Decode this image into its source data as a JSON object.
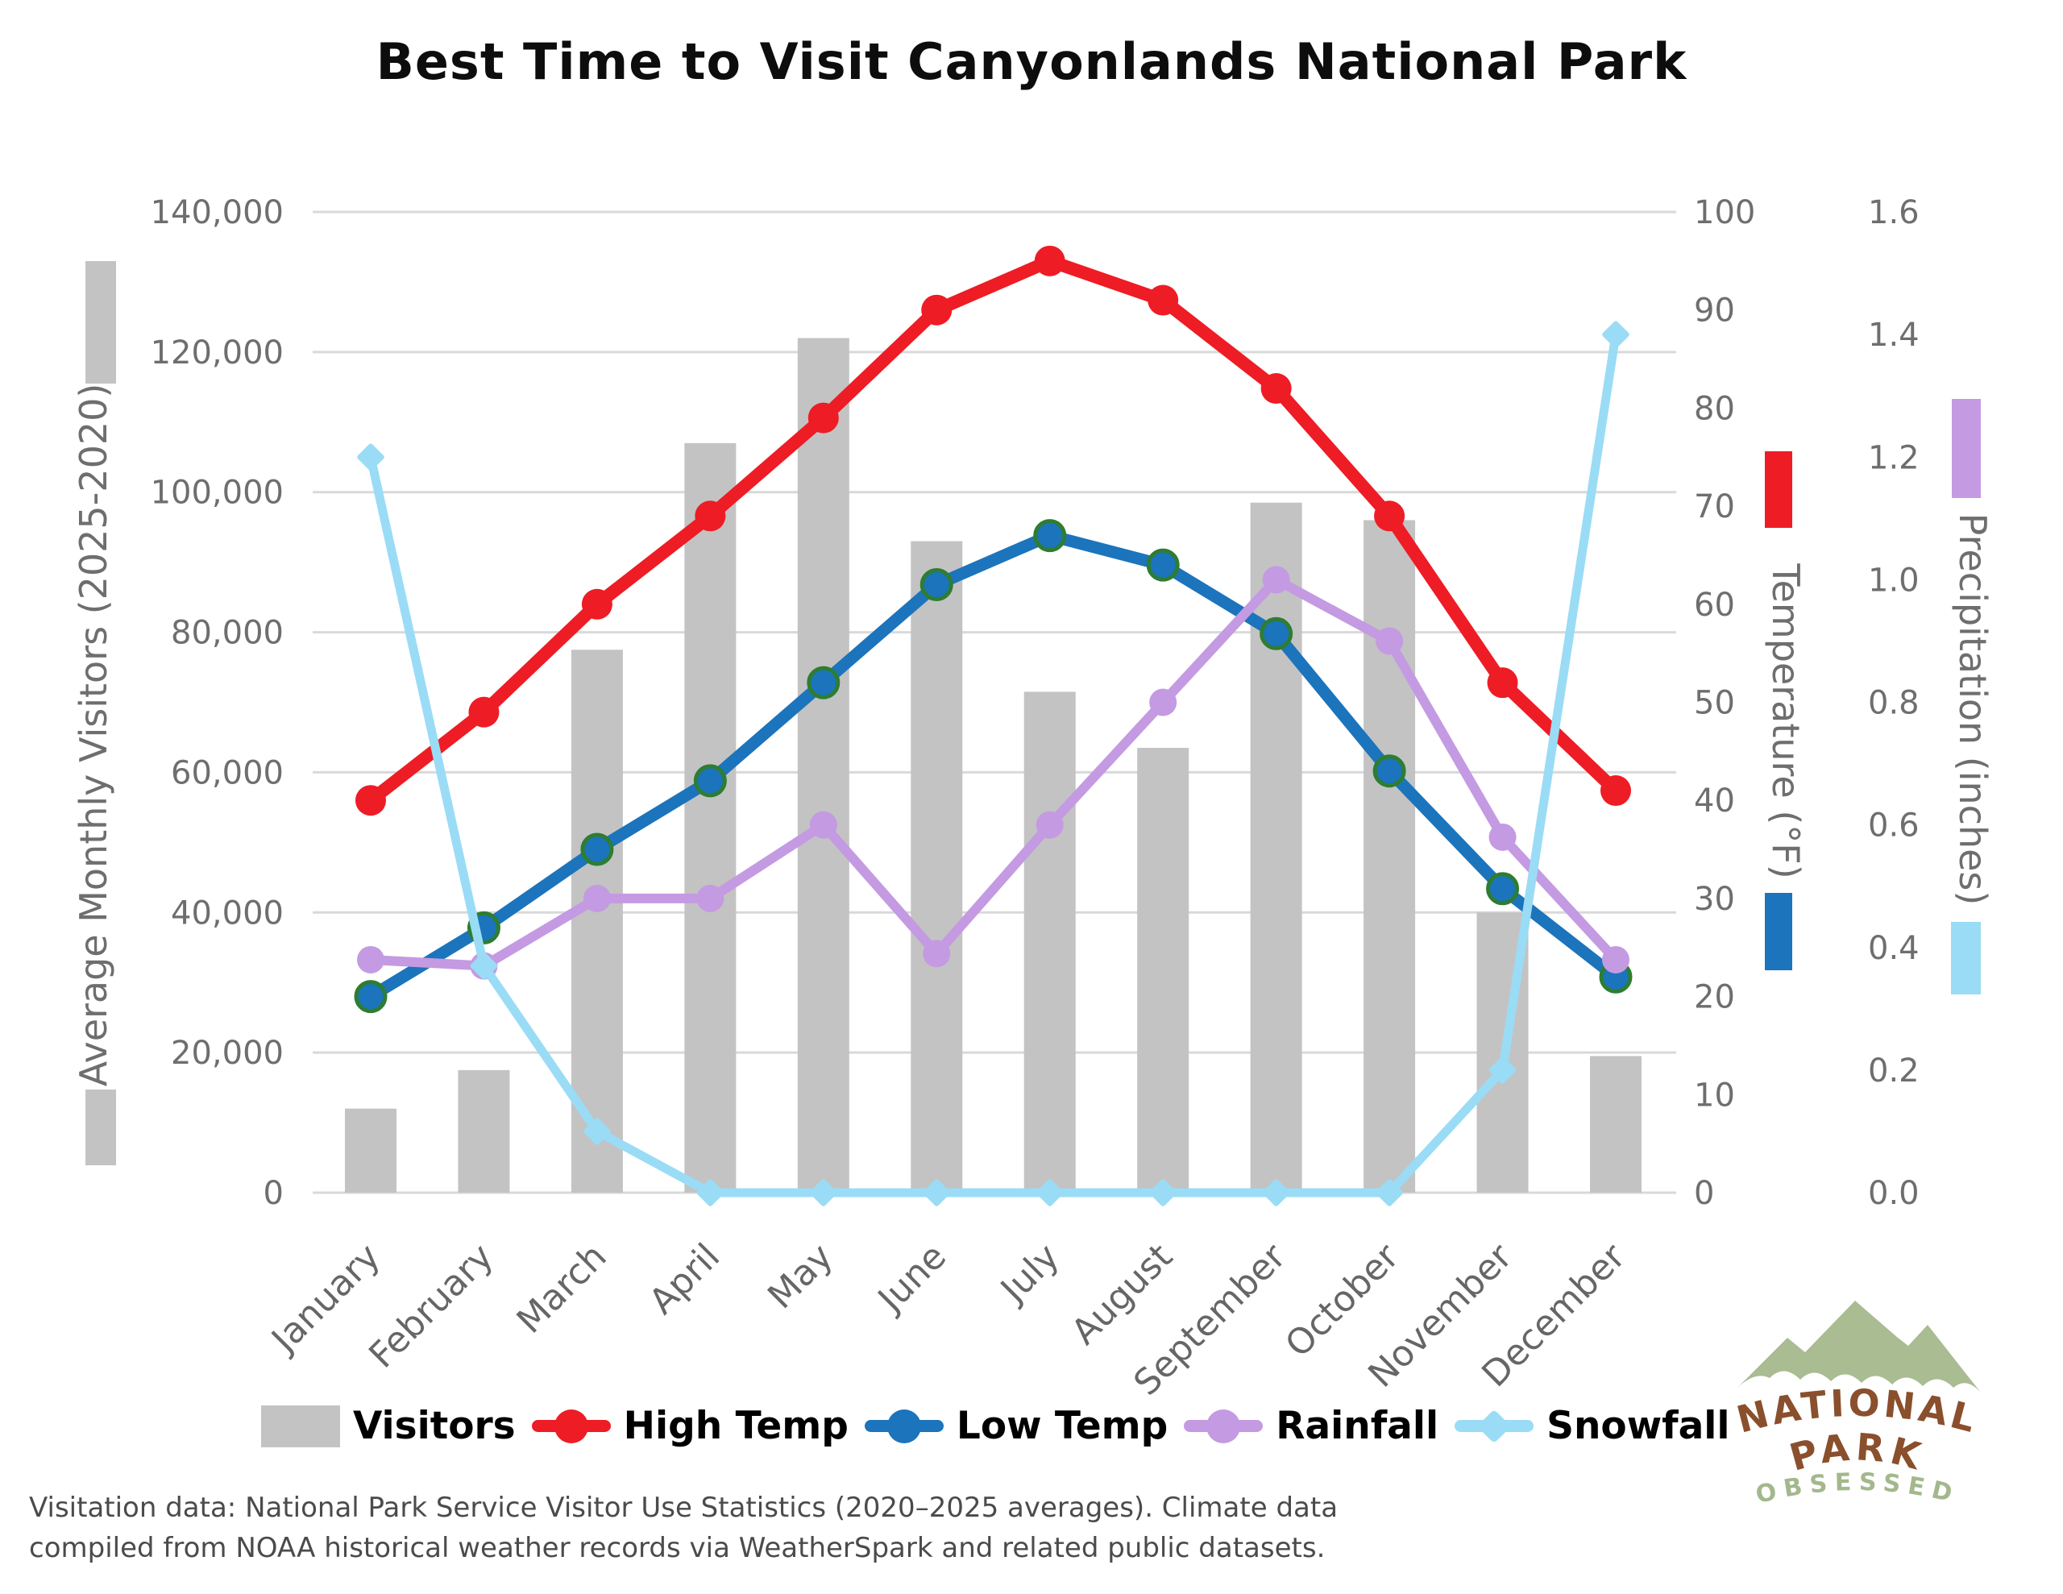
{
  "title": "Best Time to Visit Canyonlands National Park",
  "y_axis_left": {
    "label": "Average Monthly Visitors (2025-2020)",
    "swatch_color": "#c3c3c3",
    "ticks": [
      "140,000",
      "120,000",
      "100,000",
      "80,000",
      "60,000",
      "40,000",
      "20,000",
      "0"
    ]
  },
  "y_axis_temp": {
    "label": "Temperature (°F)",
    "high_swatch_color": "#ee1c25",
    "low_swatch_color": "#1b74bc",
    "ticks": [
      "100",
      "90",
      "80",
      "70",
      "60",
      "50",
      "40",
      "30",
      "20",
      "10",
      "0"
    ]
  },
  "y_axis_precip": {
    "label": "Precipitation (inches)",
    "rain_swatch_color": "#c49ae2",
    "snow_swatch_color": "#9adcf5",
    "ticks": [
      "1.6",
      "1.4",
      "1.2",
      "1.0",
      "0.8",
      "0.6",
      "0.4",
      "0.2",
      "0.0"
    ]
  },
  "legend": {
    "items": [
      {
        "label": "Visitors",
        "type": "bar",
        "color": "#c3c3c3"
      },
      {
        "label": "High Temp",
        "type": "line-dot",
        "color": "#ee1c25"
      },
      {
        "label": "Low Temp",
        "type": "line-dot",
        "color": "#1b74bc"
      },
      {
        "label": "Rainfall",
        "type": "line-dot",
        "color": "#c49ae2"
      },
      {
        "label": "Snowfall",
        "type": "line-diamond",
        "color": "#9adcf5"
      }
    ]
  },
  "footer": {
    "line1": "Visitation data: National Park Service Visitor Use Statistics (2020–2025 averages). Climate data",
    "line2": "compiled from NOAA historical weather records via WeatherSpark and related public datasets."
  },
  "logo": {
    "line1": "NATIONAL",
    "line2": "PARK",
    "line3": "OBSESSED",
    "mountain_color": "#a9bc92",
    "text_color": "#8a4f2c",
    "subtitle_color": "#a3b88c"
  },
  "chart_data": {
    "type": "combo",
    "categories": [
      "January",
      "February",
      "March",
      "April",
      "May",
      "June",
      "July",
      "August",
      "September",
      "October",
      "November",
      "December"
    ],
    "series": [
      {
        "name": "Visitors",
        "type": "bar",
        "axis": "visitors",
        "color": "#c3c3c3",
        "marker": "none",
        "values": [
          12000,
          17500,
          77500,
          107000,
          122000,
          93000,
          71500,
          63500,
          98500,
          96000,
          40000,
          19500
        ]
      },
      {
        "name": "High Temp",
        "type": "line",
        "axis": "temperature",
        "color": "#ee1c25",
        "marker": "circle",
        "values": [
          40,
          49,
          60,
          69,
          79,
          90,
          95,
          91,
          82,
          69,
          52,
          41
        ]
      },
      {
        "name": "Low Temp",
        "type": "line",
        "axis": "temperature",
        "color": "#1b74bc",
        "marker": "circle-green-ring",
        "marker_ring_color": "#2e7d32",
        "values": [
          20,
          27,
          35,
          42,
          52,
          62,
          67,
          64,
          57,
          43,
          31,
          22
        ]
      },
      {
        "name": "Rainfall",
        "type": "line",
        "axis": "precipitation",
        "color": "#c49ae2",
        "marker": "circle",
        "values": [
          0.38,
          0.37,
          0.48,
          0.48,
          0.6,
          0.39,
          0.6,
          0.8,
          1.0,
          0.9,
          0.58,
          0.38
        ]
      },
      {
        "name": "Snowfall",
        "type": "line",
        "axis": "precipitation",
        "color": "#9adcf5",
        "marker": "diamond",
        "values": [
          1.2,
          0.37,
          0.1,
          0,
          0,
          0,
          0,
          0,
          0,
          0,
          0.2,
          1.4
        ]
      }
    ],
    "axis_ranges": {
      "visitors": [
        0,
        140000
      ],
      "temperature": [
        0,
        100
      ],
      "precipitation": [
        0,
        1.6
      ]
    },
    "grid": true,
    "grid_color": "#d9d9d9",
    "tick_color": "#6e6e6e",
    "legend_position": "bottom",
    "xlabel": "",
    "ylabel_left": "Average Monthly Visitors (2025-2020)",
    "ylabel_right_1": "Temperature (°F)",
    "ylabel_right_2": "Precipitation (inches)"
  }
}
